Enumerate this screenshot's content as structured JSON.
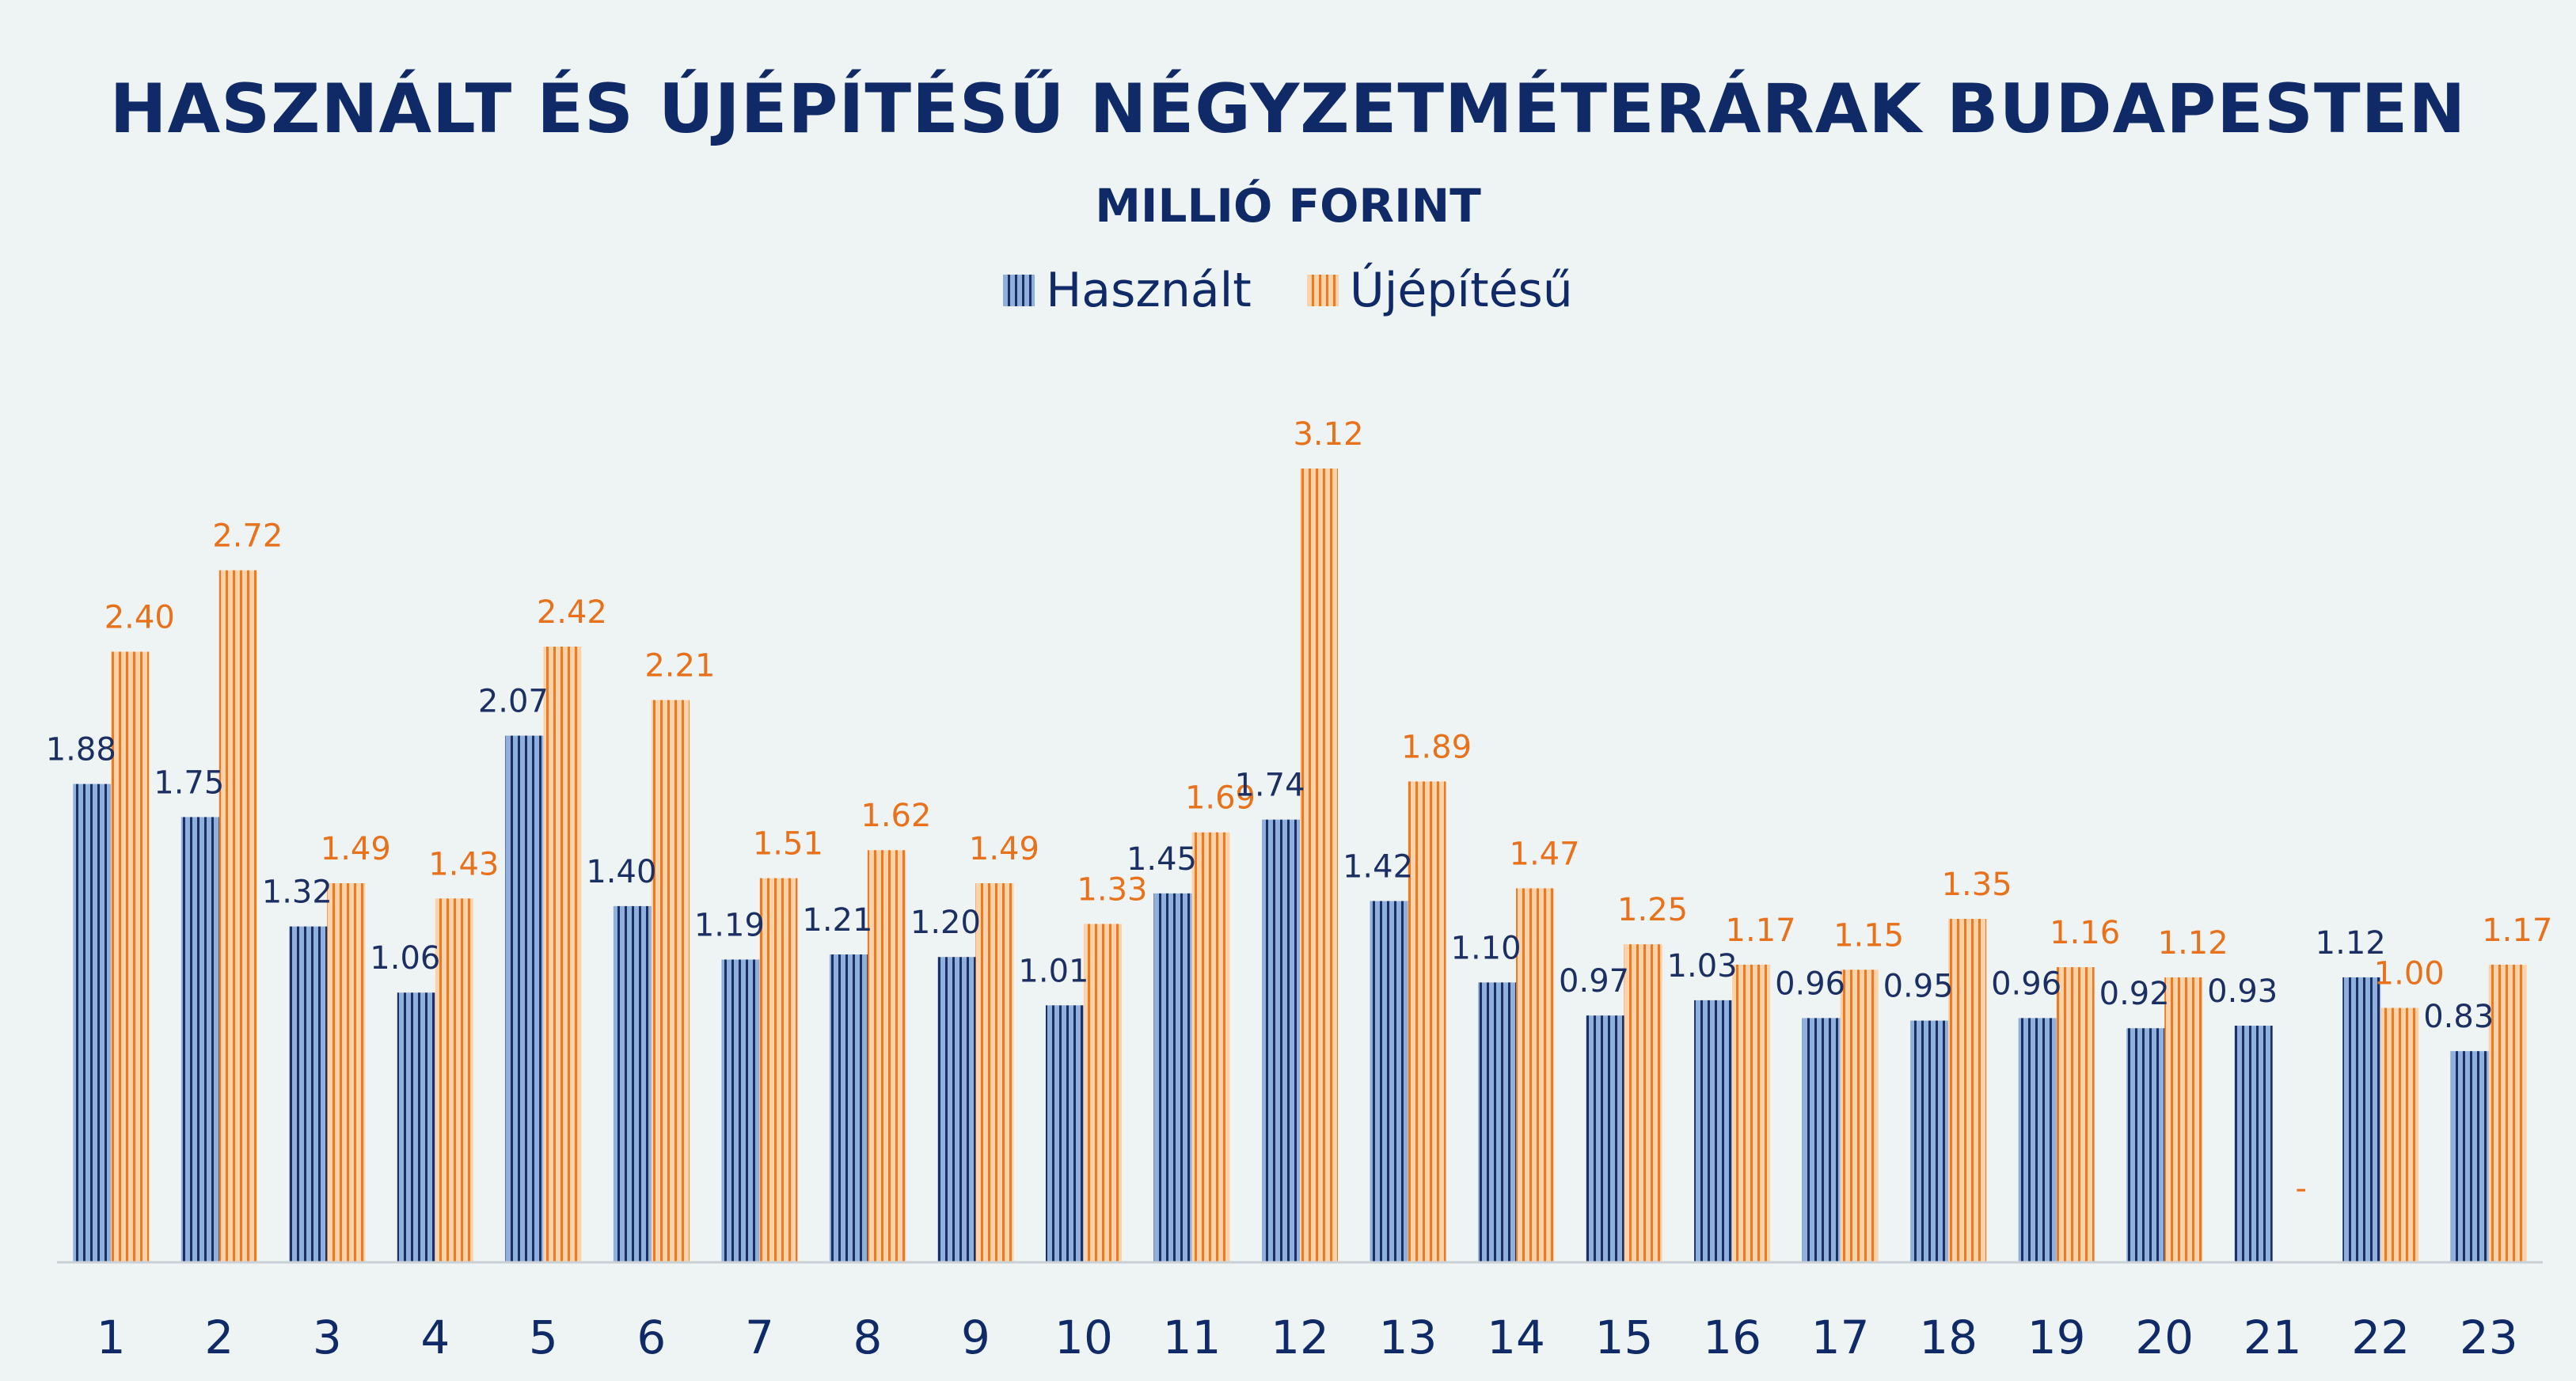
{
  "chart_data": {
    "type": "bar",
    "title": "HASZNÁLT ÉS ÚJÉPÍTÉSŰ NÉGYZETMÉTERÁRAK BUDAPESTEN",
    "subtitle": "MILLIÓ FORINT",
    "xlabel": "",
    "ylabel": "",
    "ylim": [
      0,
      3.3
    ],
    "legend_position": "top-center",
    "grid": false,
    "categories": [
      "1",
      "2",
      "3",
      "4",
      "5",
      "6",
      "7",
      "8",
      "9",
      "10",
      "11",
      "12",
      "13",
      "14",
      "15",
      "16",
      "17",
      "18",
      "19",
      "20",
      "21",
      "22",
      "23"
    ],
    "series": [
      {
        "name": "Használt",
        "color": "#8fb0dd",
        "label_color": "#1b2f63",
        "values": [
          1.88,
          1.75,
          1.32,
          1.06,
          2.07,
          1.4,
          1.19,
          1.21,
          1.2,
          1.01,
          1.45,
          1.74,
          1.42,
          1.1,
          0.97,
          1.03,
          0.96,
          0.95,
          0.96,
          0.92,
          0.93,
          1.12,
          0.83
        ],
        "labels": [
          "1.88",
          "1.75",
          "1.32",
          "1.06",
          "2.07",
          "1.40",
          "1.19",
          "1.21",
          "1.20",
          "1.01",
          "1.45",
          "1.74",
          "1.42",
          "1.10",
          "0.97",
          "1.03",
          "0.96",
          "0.95",
          "0.96",
          "0.92",
          "0.93",
          "1.12",
          "0.83"
        ]
      },
      {
        "name": "Újépítésű",
        "color": "#fcd2ab",
        "label_color": "#e8711b",
        "values": [
          2.4,
          2.72,
          1.49,
          1.43,
          2.42,
          2.21,
          1.51,
          1.62,
          1.49,
          1.33,
          1.69,
          3.12,
          1.89,
          1.47,
          1.25,
          1.17,
          1.15,
          1.35,
          1.16,
          1.12,
          null,
          1.0,
          1.17
        ],
        "labels": [
          "2.40",
          "2.72",
          "1.49",
          "1.43",
          "2.42",
          "2.21",
          "1.51",
          "1.62",
          "1.49",
          "1.33",
          "1.69",
          "3.12",
          "1.89",
          "1.47",
          "1.25",
          "1.17",
          "1.15",
          "1.35",
          "1.16",
          "1.12",
          "-",
          "1.00",
          "1.17"
        ]
      }
    ]
  }
}
